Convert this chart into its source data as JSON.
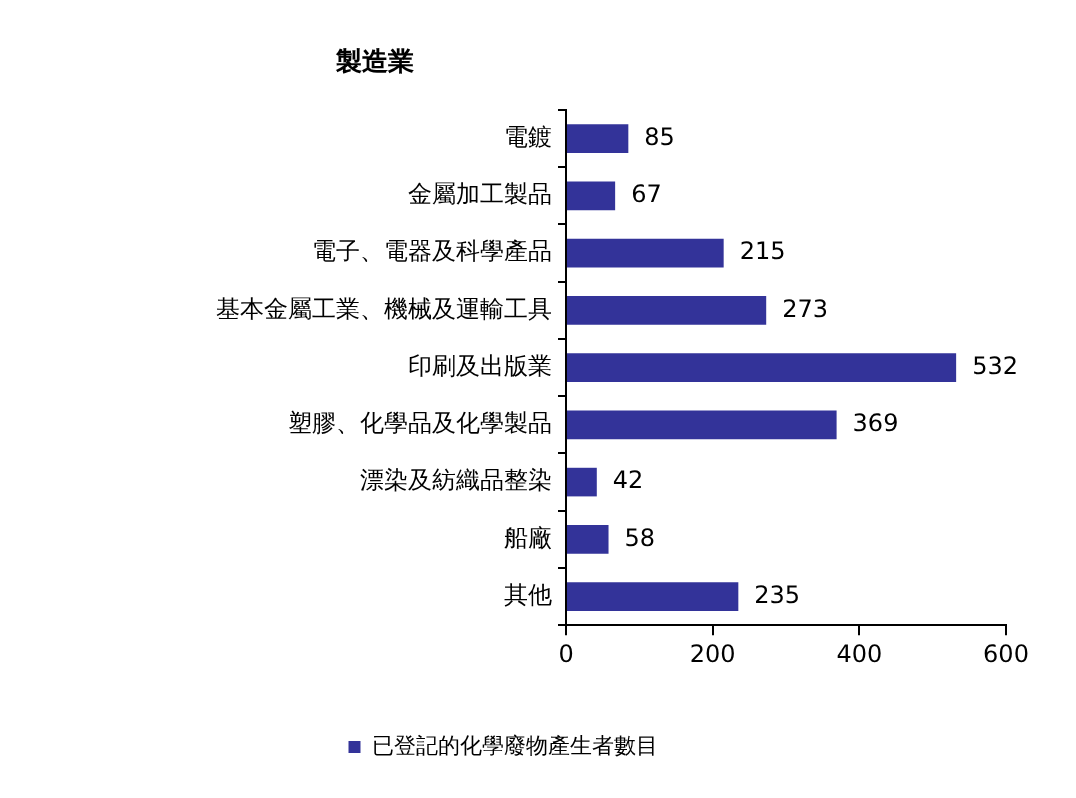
{
  "chart_data": {
    "type": "bar",
    "orientation": "horizontal",
    "title": "製造業",
    "categories": [
      "電鍍",
      "金屬加工製品",
      "電子、電器及科學產品",
      "基本金屬工業、機械及運輸工具",
      "印刷及出版業",
      "塑膠、化學品及化學製品",
      "漂染及紡織品整染",
      "船廠",
      "其他"
    ],
    "series": [
      {
        "name": "已登記的化學廢物產生者數目",
        "color": "#333399",
        "values": [
          85,
          67,
          215,
          273,
          532,
          369,
          42,
          58,
          235
        ]
      }
    ],
    "xlim": [
      0,
      600
    ],
    "xticks": [
      0,
      200,
      400,
      600
    ],
    "grid": false,
    "legend": "bottom",
    "data_labels": true
  }
}
